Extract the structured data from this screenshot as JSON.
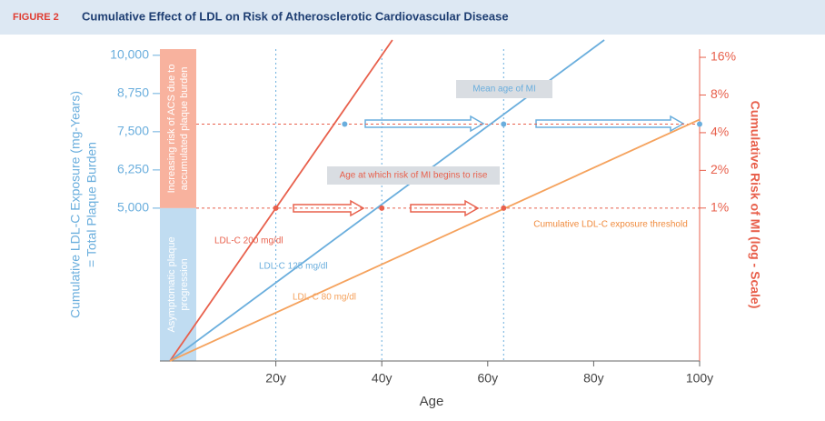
{
  "chart_data": {
    "type": "line",
    "figure_label": "FIGURE 2",
    "title": "Cumulative Effect of LDL on Risk of Atherosclerotic Cardiovascular Disease",
    "x_label": "Age",
    "y_label_lines": [
      "Cumulative LDL-C Exposure (mg-Years)",
      "= Total Plaque Burden"
    ],
    "y2_label": "Cumulative Risk of MI (log - Scale)",
    "xlim": [
      0,
      100
    ],
    "xticks": [
      {
        "value": 20,
        "label": "20y"
      },
      {
        "value": 40,
        "label": "40y"
      },
      {
        "value": 60,
        "label": "60y"
      },
      {
        "value": 80,
        "label": "80y"
      },
      {
        "value": 100,
        "label": "100y"
      }
    ],
    "ylim": [
      0,
      10500
    ],
    "yticks": [
      {
        "value": 5000,
        "label": "5,000"
      },
      {
        "value": 6250,
        "label": "6,250"
      },
      {
        "value": 7500,
        "label": "7,500"
      },
      {
        "value": 8750,
        "label": "8,750"
      },
      {
        "value": 10000,
        "label": "10,000"
      }
    ],
    "y2_log": true,
    "y2lim": [
      0.06,
      22
    ],
    "y2ticks": [
      {
        "value": 1,
        "label": "1%"
      },
      {
        "value": 2,
        "label": "2%"
      },
      {
        "value": 4,
        "label": "4%"
      },
      {
        "value": 8,
        "label": "8%"
      },
      {
        "value": 16,
        "label": "16%"
      }
    ],
    "series": [
      {
        "name": "LDL-C 200 mg/dl",
        "color": "#e8604c",
        "x": [
          0,
          42
        ],
        "values": [
          0,
          10500
        ]
      },
      {
        "name": "LDL-C 125 mg/dl",
        "color": "#6aaedd",
        "x": [
          0,
          82
        ],
        "values": [
          0,
          10500
        ]
      },
      {
        "name": "LDL-C 80 mg/dl",
        "color": "#f5a25d",
        "x": [
          0,
          100
        ],
        "values": [
          0,
          7900
        ]
      }
    ],
    "hlines": [
      5000,
      7750
    ],
    "vlines": [
      20,
      40,
      63
    ],
    "points": [
      {
        "x": 20,
        "y": 5000,
        "color": "#e8604c"
      },
      {
        "x": 40,
        "y": 5000,
        "color": "#e8604c"
      },
      {
        "x": 63,
        "y": 5000,
        "color": "#e8604c"
      },
      {
        "x": 33,
        "y": 7750,
        "color": "#6aaedd"
      },
      {
        "x": 63,
        "y": 7750,
        "color": "#6aaedd"
      },
      {
        "x": 100,
        "y": 7750,
        "color": "#6aaedd"
      }
    ],
    "annotations": [
      "Mean age of MI",
      "Age at which risk of MI begins to rise",
      "Cumulative LDL-C exposure threshold"
    ],
    "bands": [
      {
        "lines": [
          "Increasing risk of ACS due to",
          "accumulated plaque burden"
        ],
        "color": "#f7a58d"
      },
      {
        "lines": [
          "Asymptomatic plaque",
          "progression"
        ],
        "color": "#b5d6ee"
      }
    ]
  }
}
